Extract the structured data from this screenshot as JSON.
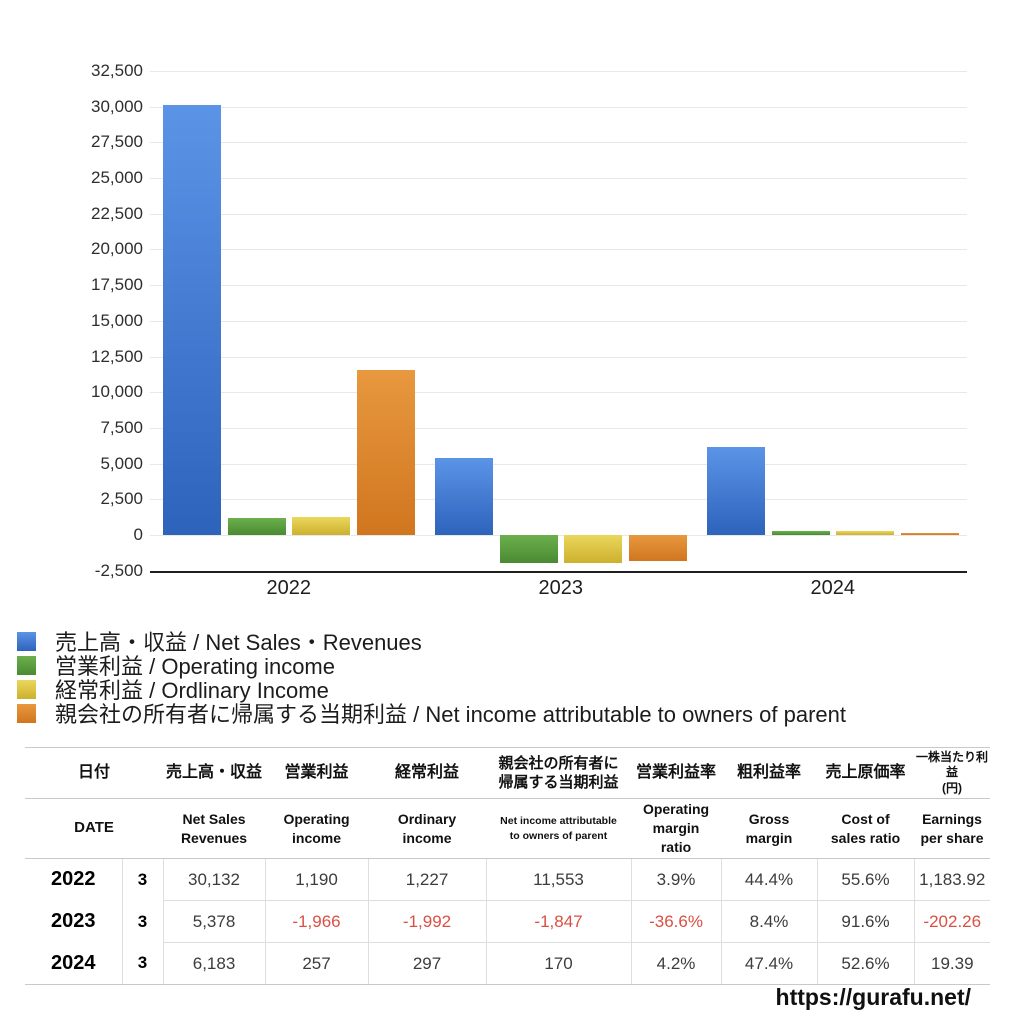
{
  "chart_data": {
    "type": "bar",
    "categories": [
      "2022",
      "2023",
      "2024"
    ],
    "series": [
      {
        "name": "売上高・収益 / Net Sales・Revenues",
        "color_top": "#5b94e7",
        "color_bottom": "#2e63bc",
        "values": [
          30132,
          5378,
          6183
        ]
      },
      {
        "name": "営業利益 / Operating income",
        "color_top": "#6cb04d",
        "color_bottom": "#4a8a33",
        "values": [
          1190,
          -1966,
          257
        ]
      },
      {
        "name": "経常利益 / Ordlinary Income",
        "color_top": "#ead75c",
        "color_bottom": "#cdb02e",
        "values": [
          1227,
          -1992,
          297
        ]
      },
      {
        "name": "親会社の所有者に帰属する当期利益 / Net income attributable to owners of parent",
        "color_top": "#e8983f",
        "color_bottom": "#d0761f",
        "values": [
          11553,
          -1847,
          170
        ]
      }
    ],
    "title": "",
    "xlabel": "",
    "ylabel": "",
    "ylim": [
      -2500,
      32500
    ],
    "grid": true,
    "grid_color": "#e8e8e8",
    "axis_color": "#1f1f1f",
    "legend_position": "below-left",
    "y_ticks": [
      {
        "value": 32500,
        "label": "32,500"
      },
      {
        "value": 30000,
        "label": "30,000"
      },
      {
        "value": 27500,
        "label": "27,500"
      },
      {
        "value": 25000,
        "label": "25,000"
      },
      {
        "value": 22500,
        "label": "22,500"
      },
      {
        "value": 20000,
        "label": "20,000"
      },
      {
        "value": 17500,
        "label": "17,500"
      },
      {
        "value": 15000,
        "label": "15,000"
      },
      {
        "value": 12500,
        "label": "12,500"
      },
      {
        "value": 10000,
        "label": "10,000"
      },
      {
        "value": 7500,
        "label": "7,500"
      },
      {
        "value": 5000,
        "label": "5,000"
      },
      {
        "value": 2500,
        "label": "2,500"
      },
      {
        "value": 0,
        "label": "0"
      },
      {
        "value": -2500,
        "label": "-2,500"
      }
    ]
  },
  "table": {
    "header_ja": [
      "日付",
      "売上高・収益",
      "営業利益",
      "経常利益",
      "親会社の所有者に\n帰属する当期利益",
      "営業利益率",
      "粗利益率",
      "売上原価率",
      "一株当たり利益\n(円)"
    ],
    "header_en": [
      "DATE",
      "Net Sales\nRevenues",
      "Operating\nincome",
      "Ordinary\nincome",
      "Net income attributable\nto owners of parent",
      "Operating\nmargin\nratio",
      "Gross\nmargin",
      "Cost of\nsales ratio",
      "Earnings\nper share"
    ],
    "rows": [
      {
        "year": "2022",
        "month": "3",
        "values": [
          "30,132",
          "1,190",
          "1,227",
          "11,553",
          "3.9%",
          "44.4%",
          "55.6%",
          "1,183.92"
        ]
      },
      {
        "year": "2023",
        "month": "3",
        "values": [
          "5,378",
          "-1,966",
          "-1,992",
          "-1,847",
          "-36.6%",
          "8.4%",
          "91.6%",
          "-202.26"
        ]
      },
      {
        "year": "2024",
        "month": "3",
        "values": [
          "6,183",
          "257",
          "297",
          "170",
          "4.2%",
          "47.4%",
          "52.6%",
          "19.39"
        ]
      }
    ],
    "negative_color": "#db4f43"
  },
  "footer": {
    "url": "https://gurafu.net/"
  }
}
